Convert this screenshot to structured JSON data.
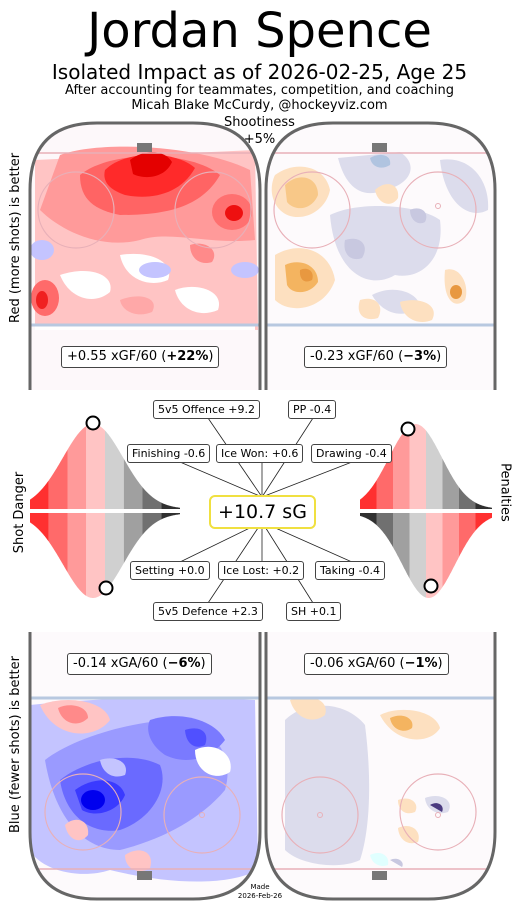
{
  "header": {
    "title": "Jordan Spence",
    "subtitle": "Isolated Impact as of 2026-02-25, Age 25",
    "line2": "After accounting for teammates, competition, and coaching",
    "line3": "Micah Blake McCurdy, @hockeyviz.com",
    "shootiness_label": "Shootiness",
    "shootiness_value": "+5%"
  },
  "axis_labels": {
    "top": "Red (more shots) is better",
    "bottom": "Blue (fewer shots) is better",
    "left_mid": "Shot Danger",
    "right_mid": "Penalties"
  },
  "chart_data": {
    "type": "heatmap",
    "rinks": [
      {
        "position": "top-left",
        "metric_prefix": "+0.55 xGF/60 (",
        "metric_bold": "+22%",
        "metric_suffix": ")",
        "value": 0.55,
        "pct": 22,
        "palette": "red"
      },
      {
        "position": "top-right",
        "metric_prefix": "-0.23 xGF/60 (",
        "metric_bold": "−3%",
        "metric_suffix": ")",
        "value": -0.23,
        "pct": -3,
        "palette": "orange"
      },
      {
        "position": "bottom-left",
        "metric_prefix": "-0.14 xGA/60 (",
        "metric_bold": "−6%",
        "metric_suffix": ")",
        "value": -0.14,
        "pct": -6,
        "palette": "blue"
      },
      {
        "position": "bottom-right",
        "metric_prefix": "-0.06 xGA/60 (",
        "metric_bold": "−1%",
        "metric_suffix": ")",
        "value": -0.06,
        "pct": -1,
        "palette": "orange"
      }
    ],
    "impact_boxes": {
      "offence": "5v5 Offence +9.2",
      "pp": "PP -0.4",
      "finishing": "Finishing -0.6",
      "ice_won": "Ice Won: +0.6",
      "drawing": "Drawing -0.4",
      "setting": "Setting +0.0",
      "ice_lost": "Ice Lost: +0.2",
      "taking": "Taking -0.4",
      "defence": "5v5 Defence +2.3",
      "sh": "SH +0.1"
    },
    "total": "+10.7 sG",
    "distributions": {
      "shot_danger_for_pct": 0.82,
      "shot_danger_against_pct": 0.12,
      "penalties_drawing_pct": 0.85,
      "penalties_taking_pct": 0.12
    }
  },
  "footer": {
    "made": "Made",
    "date": "2026-Feb-26"
  },
  "colors": {
    "red": "#ff3030",
    "blue": "#3a3aff",
    "orange": "#f4a640",
    "lavender": "#c8c8e0",
    "highlight": "#f0e040"
  }
}
